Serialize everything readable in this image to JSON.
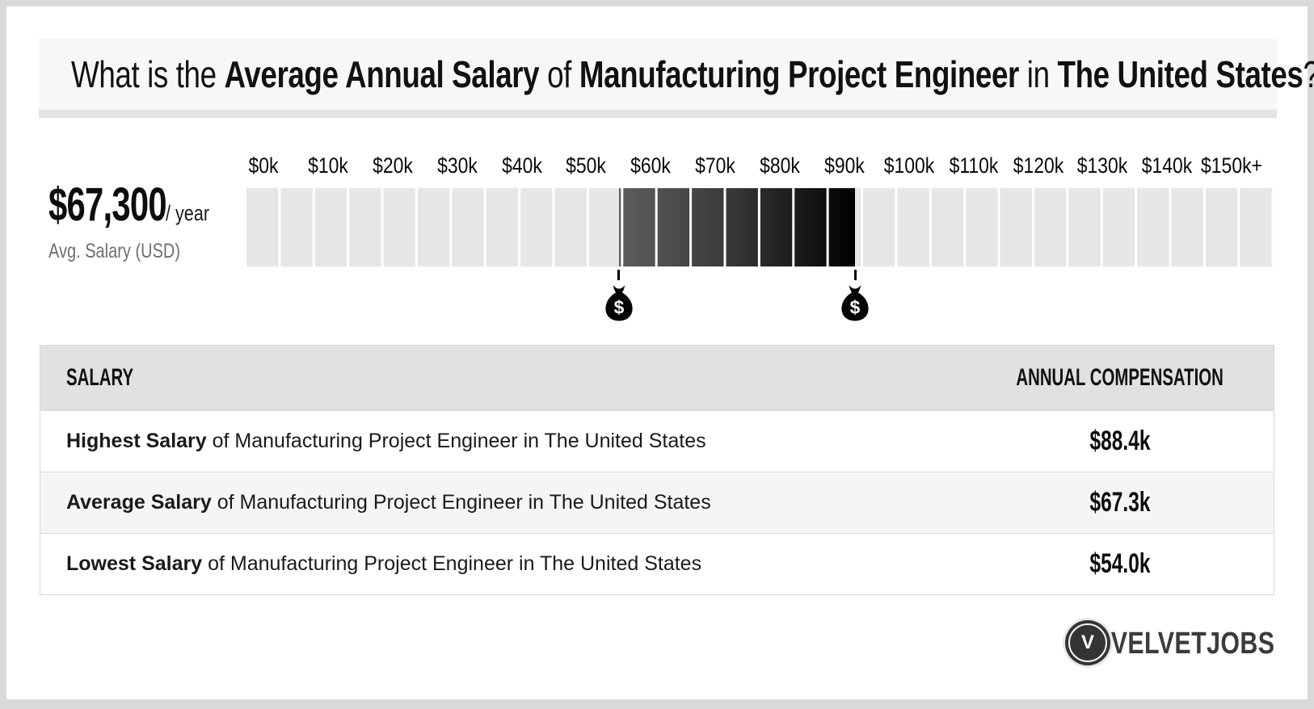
{
  "header": {
    "title_segments": [
      {
        "text": "What is the ",
        "bold": false
      },
      {
        "text": "Average Annual Salary",
        "bold": true
      },
      {
        "text": " of ",
        "bold": false
      },
      {
        "text": "Manufacturing Project Engineer",
        "bold": true
      },
      {
        "text": " in ",
        "bold": false
      },
      {
        "text": "The United States",
        "bold": true
      },
      {
        "text": "?",
        "bold": false
      }
    ]
  },
  "stat": {
    "amount": "$67,300",
    "per": "/ year",
    "caption": "Avg. Salary (USD)"
  },
  "chart_data": {
    "type": "bar",
    "subtype": "salary-range-scale",
    "title": "Average Annual Salary of Manufacturing Project Engineer in The United States",
    "axis_labels": [
      "$0k",
      "$10k",
      "$20k",
      "$30k",
      "$40k",
      "$50k",
      "$60k",
      "$70k",
      "$80k",
      "$90k",
      "$100k",
      "$110k",
      "$120k",
      "$130k",
      "$140k",
      "$150k+"
    ],
    "axis_min_k": 0,
    "axis_max_k": 150,
    "segment_count": 30,
    "segment_step_k": 5,
    "lowest_k": 54.0,
    "average_k": 67.3,
    "highest_k": 88.4,
    "highlight_range_k": [
      54.0,
      88.4
    ],
    "currency_symbol": "$",
    "colors": {
      "track": "#e6e6e6",
      "range_start": "#5e5e5e",
      "range_end": "#000000",
      "marker": "#000000"
    }
  },
  "table": {
    "columns": [
      "SALARY",
      "ANNUAL COMPENSATION"
    ],
    "rows": [
      {
        "label_bold": "Highest Salary",
        "label_rest": " of Manufacturing Project Engineer in The United States",
        "value": "$88.4k"
      },
      {
        "label_bold": "Average Salary",
        "label_rest": " of Manufacturing Project Engineer in The United States",
        "value": "$67.3k"
      },
      {
        "label_bold": "Lowest Salary",
        "label_rest": " of Manufacturing Project Engineer in The United States",
        "value": "$54.0k"
      }
    ]
  },
  "footer": {
    "brand": "VELVETJOBS",
    "brand_initial": "V"
  }
}
